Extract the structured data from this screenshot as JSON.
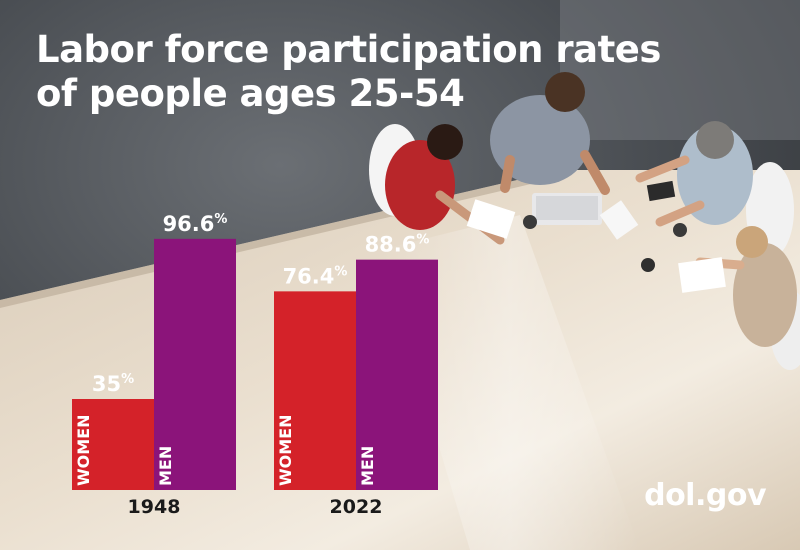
{
  "title": {
    "line1": "Labor force participation rates",
    "line2": "of people ages 25-54"
  },
  "footer": {
    "source": "dol.gov"
  },
  "colors": {
    "women": "#d42229",
    "men": "#8b147a",
    "text_dark": "#1a1a1a"
  },
  "chart_data": {
    "type": "bar",
    "title": "Labor force participation rates of people ages 25-54",
    "categories": [
      "1948",
      "2022"
    ],
    "series": [
      {
        "name": "WOMEN",
        "values": [
          35,
          76.4
        ],
        "labels": [
          "35%",
          "76.4%"
        ]
      },
      {
        "name": "MEN",
        "values": [
          96.6,
          88.6
        ],
        "labels": [
          "96.6%",
          "88.6%"
        ]
      }
    ],
    "ylim": [
      0,
      100
    ],
    "grid": false,
    "legend": "none"
  }
}
